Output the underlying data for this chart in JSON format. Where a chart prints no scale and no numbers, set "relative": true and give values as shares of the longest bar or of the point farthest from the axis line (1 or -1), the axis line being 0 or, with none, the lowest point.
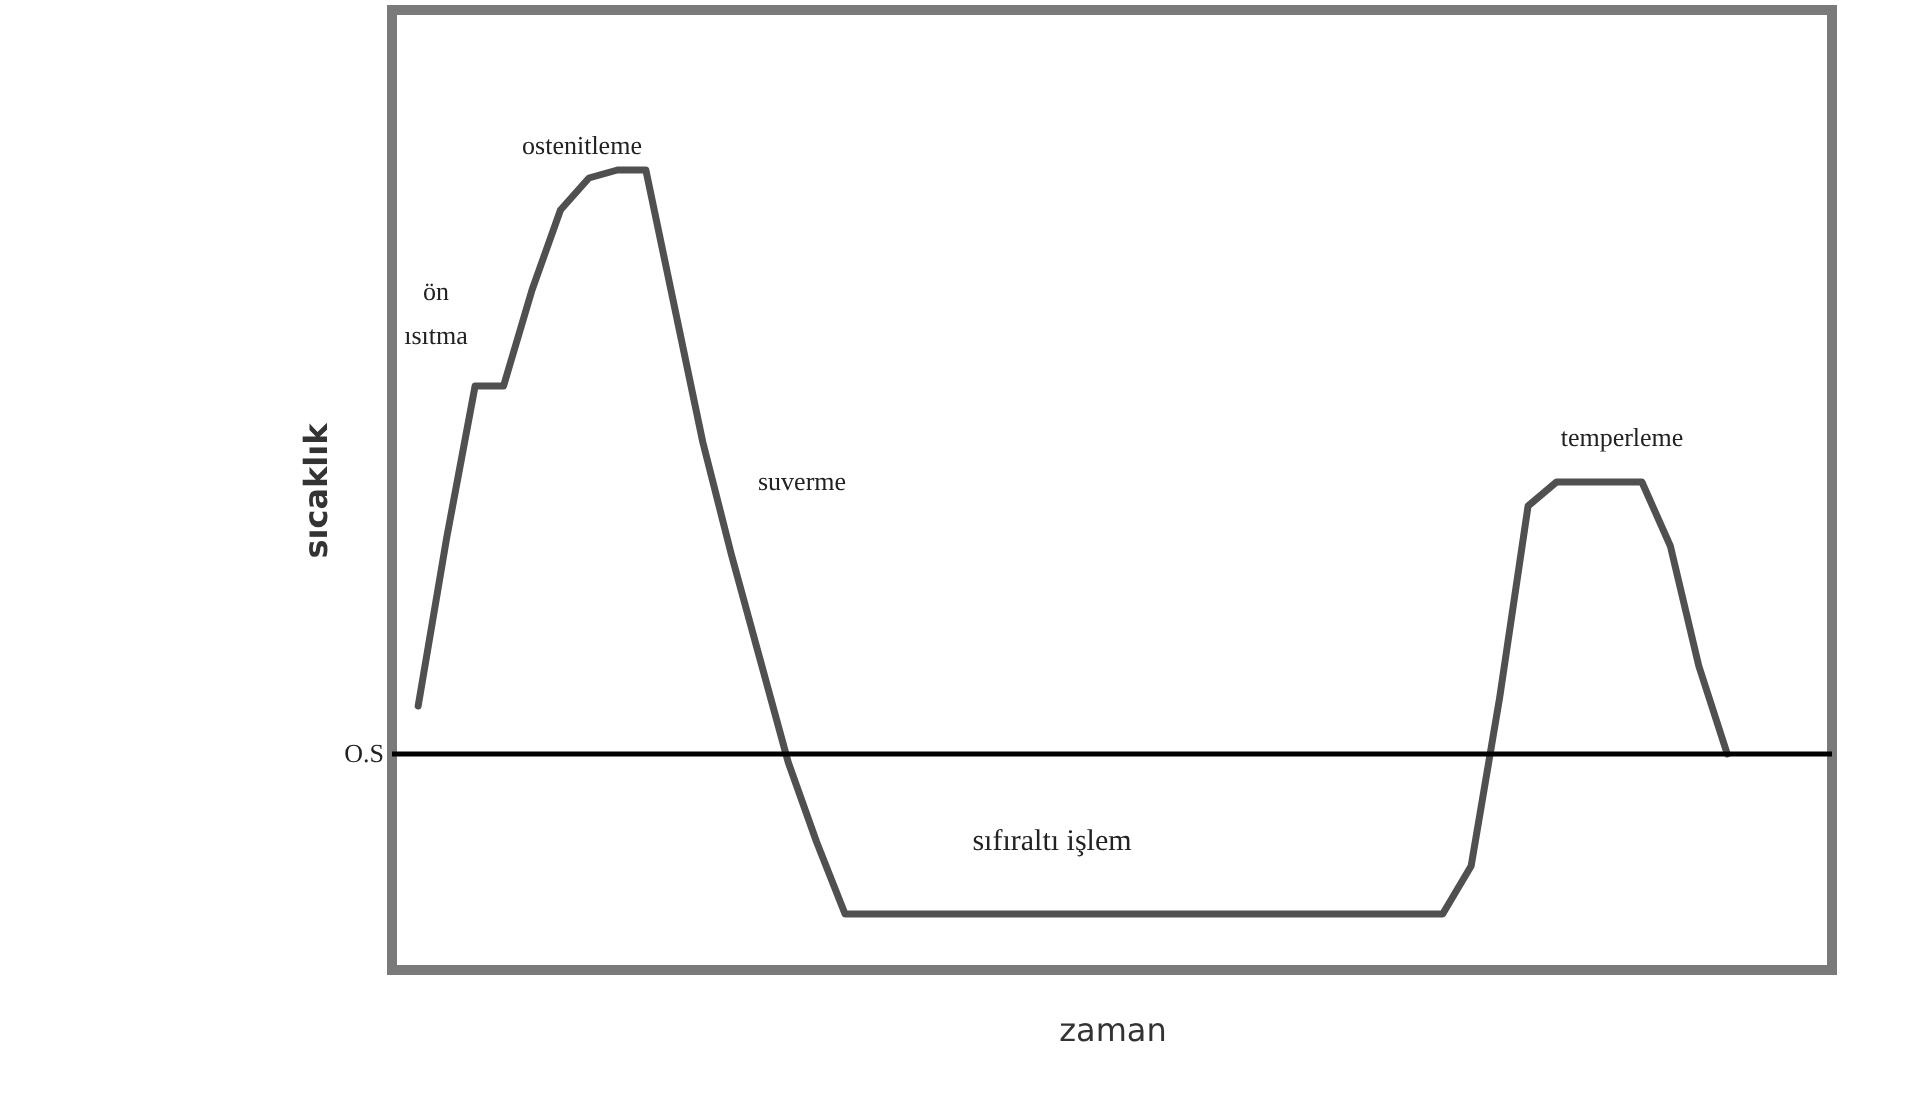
{
  "chart_data": {
    "type": "line",
    "relative": true,
    "xlabel": "zaman",
    "ylabel": "sıcaklık",
    "tick_labels": false,
    "grid": false,
    "legend": false,
    "marker": "none",
    "line_style": "solid",
    "categories": [
      null,
      null,
      null,
      null,
      null,
      null,
      null,
      null,
      null,
      null,
      null,
      null,
      null,
      null,
      null,
      null,
      null,
      null,
      null,
      null,
      null,
      null,
      null,
      null,
      null,
      null,
      null,
      null,
      null,
      null,
      null,
      null,
      null,
      null,
      null,
      null,
      null,
      null,
      null,
      null,
      null,
      null,
      null,
      null,
      null,
      null,
      null
    ],
    "series": [
      {
        "color": "#505050",
        "values": [
          0.33,
          0.54,
          0.73,
          0.73,
          0.85,
          0.95,
          0.99,
          1,
          1,
          0.83,
          0.66,
          0.52,
          0.39,
          0.26,
          0.16,
          0.07,
          0.07,
          0.07,
          0.07,
          0.07,
          0.07,
          0.07,
          0.07,
          0.07,
          0.07,
          0.07,
          0.07,
          0.07,
          0.07,
          0.07,
          0.07,
          0.07,
          0.07,
          0.07,
          0.07,
          0.07,
          0.07,
          0.13,
          0.34,
          0.58,
          0.61,
          0.61,
          0.61,
          0.61,
          0.53,
          0.38,
          0.27
        ]
      }
    ],
    "ref_lines": [
      {
        "axis": "y",
        "value": 0.27,
        "label": "O.S",
        "color": "#000000"
      }
    ],
    "annotations": [
      "ön ısıtma",
      "ostenitleme",
      "suverme",
      "sıfıraltı işlem",
      "temperleme"
    ]
  }
}
